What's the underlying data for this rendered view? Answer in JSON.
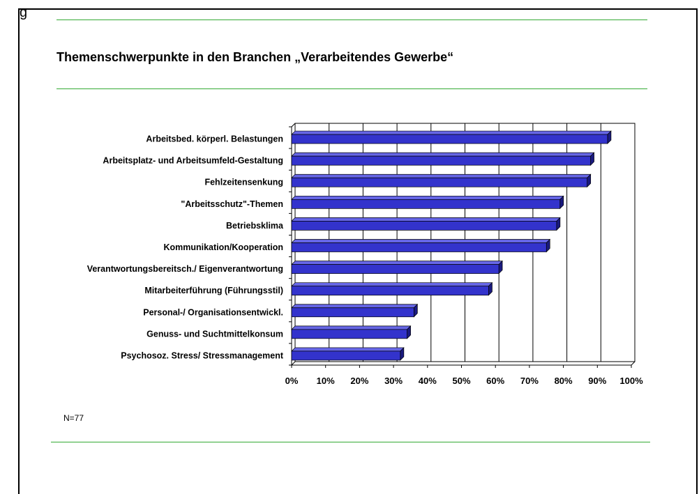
{
  "title": "Themenschwerpunkte in den Branchen „Verarbeitendes Gewerbe“",
  "note": "N=77",
  "top_fragment": "g",
  "colors": {
    "bar_front": "#3333cc",
    "bar_top": "#6666e6",
    "bar_side": "#1a1a80",
    "divider": "#33aa33"
  },
  "chart_data": {
    "type": "bar",
    "orientation": "horizontal",
    "categories": [
      "Arbeitsbed. körperl. Belastungen",
      "Arbeitsplatz- und Arbeitsumfeld-Gestaltung",
      "Fehlzeitensenkung",
      "\"Arbeitsschutz\"-Themen",
      "Betriebsklima",
      "Kommunikation/Kooperation",
      "Verantwortungsbereitsch./ Eigenverantwortung",
      "Mitarbeiterführung (Führungsstil)",
      "Personal-/ Organisationsentwickl.",
      "Genuss- und Suchtmittelkonsum",
      "Psychosoz. Stress/ Stressmanagement"
    ],
    "values": [
      93,
      88,
      87,
      79,
      78,
      75,
      61,
      58,
      36,
      34,
      32
    ],
    "xlim": [
      0,
      100
    ],
    "x_ticks": [
      "0%",
      "10%",
      "20%",
      "30%",
      "40%",
      "50%",
      "60%",
      "70%",
      "80%",
      "90%",
      "100%"
    ],
    "grid": true,
    "legend": "none",
    "xlabel": "",
    "ylabel": ""
  }
}
